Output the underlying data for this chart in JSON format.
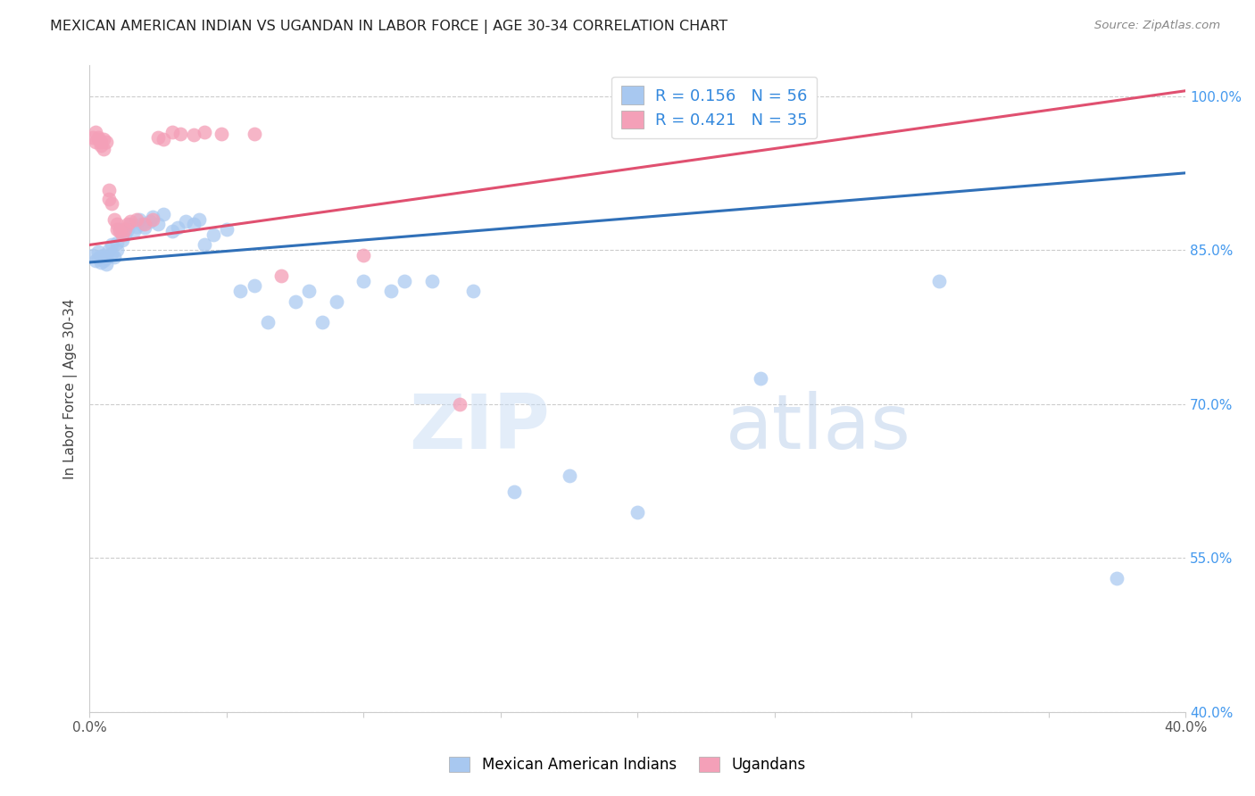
{
  "title": "MEXICAN AMERICAN INDIAN VS UGANDAN IN LABOR FORCE | AGE 30-34 CORRELATION CHART",
  "source": "Source: ZipAtlas.com",
  "ylabel": "In Labor Force | Age 30-34",
  "xlim": [
    0.0,
    0.4
  ],
  "ylim": [
    0.4,
    1.03
  ],
  "xticks": [
    0.0,
    0.05,
    0.1,
    0.15,
    0.2,
    0.25,
    0.3,
    0.35,
    0.4
  ],
  "xticklabels": [
    "0.0%",
    "",
    "",
    "",
    "",
    "",
    "",
    "",
    "40.0%"
  ],
  "yticks": [
    0.4,
    0.55,
    0.7,
    0.85,
    1.0
  ],
  "yticklabels": [
    "40.0%",
    "55.0%",
    "70.0%",
    "85.0%",
    "100.0%"
  ],
  "blue_R": 0.156,
  "blue_N": 56,
  "pink_R": 0.421,
  "pink_N": 35,
  "blue_color": "#A8C8F0",
  "pink_color": "#F4A0B8",
  "blue_line_color": "#3070B8",
  "pink_line_color": "#E05070",
  "legend_label_blue": "Mexican American Indians",
  "legend_label_pink": "Ugandans",
  "watermark_zip": "ZIP",
  "watermark_atlas": "atlas",
  "blue_line_x0": 0.0,
  "blue_line_y0": 0.838,
  "blue_line_x1": 0.4,
  "blue_line_y1": 0.925,
  "pink_line_x0": 0.0,
  "pink_line_x1": 0.4,
  "pink_line_y0": 0.855,
  "pink_line_y1": 1.005,
  "blue_x": [
    0.001,
    0.002,
    0.003,
    0.003,
    0.004,
    0.004,
    0.005,
    0.005,
    0.006,
    0.006,
    0.007,
    0.008,
    0.008,
    0.009,
    0.01,
    0.01,
    0.011,
    0.012,
    0.013,
    0.014,
    0.015,
    0.016,
    0.017,
    0.018,
    0.019,
    0.02,
    0.022,
    0.023,
    0.025,
    0.027,
    0.03,
    0.032,
    0.035,
    0.038,
    0.04,
    0.042,
    0.045,
    0.05,
    0.055,
    0.06,
    0.065,
    0.075,
    0.08,
    0.085,
    0.09,
    0.1,
    0.11,
    0.115,
    0.125,
    0.14,
    0.155,
    0.175,
    0.2,
    0.245,
    0.31,
    0.375
  ],
  "blue_y": [
    0.845,
    0.84,
    0.842,
    0.848,
    0.838,
    0.844,
    0.84,
    0.845,
    0.836,
    0.842,
    0.85,
    0.847,
    0.855,
    0.843,
    0.85,
    0.857,
    0.87,
    0.86,
    0.865,
    0.87,
    0.875,
    0.868,
    0.873,
    0.88,
    0.875,
    0.872,
    0.878,
    0.882,
    0.875,
    0.885,
    0.868,
    0.872,
    0.878,
    0.875,
    0.88,
    0.855,
    0.865,
    0.87,
    0.81,
    0.815,
    0.78,
    0.8,
    0.81,
    0.78,
    0.8,
    0.82,
    0.81,
    0.82,
    0.82,
    0.81,
    0.615,
    0.63,
    0.595,
    0.725,
    0.82,
    0.53
  ],
  "pink_x": [
    0.001,
    0.002,
    0.002,
    0.003,
    0.003,
    0.004,
    0.004,
    0.005,
    0.005,
    0.006,
    0.007,
    0.007,
    0.008,
    0.009,
    0.01,
    0.01,
    0.011,
    0.012,
    0.013,
    0.014,
    0.015,
    0.017,
    0.02,
    0.023,
    0.025,
    0.027,
    0.03,
    0.033,
    0.038,
    0.042,
    0.048,
    0.06,
    0.07,
    0.1,
    0.135
  ],
  "pink_y": [
    0.96,
    0.955,
    0.965,
    0.958,
    0.96,
    0.952,
    0.955,
    0.958,
    0.948,
    0.955,
    0.9,
    0.908,
    0.895,
    0.88,
    0.875,
    0.87,
    0.868,
    0.865,
    0.87,
    0.875,
    0.878,
    0.88,
    0.875,
    0.88,
    0.96,
    0.958,
    0.965,
    0.963,
    0.962,
    0.965,
    0.963,
    0.963,
    0.825,
    0.845,
    0.7
  ]
}
